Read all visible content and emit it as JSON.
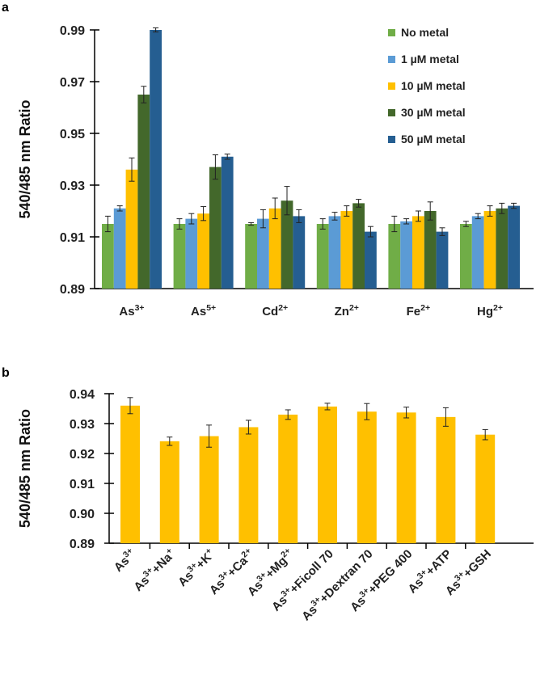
{
  "chart_data": [
    {
      "panel": "a",
      "type": "bar",
      "ylabel": "540/485 nm Ratio",
      "ylim": [
        0.89,
        0.99
      ],
      "yticks": [
        "0.89",
        "0.91",
        "0.93",
        "0.95",
        "0.97",
        "0.99"
      ],
      "grid": false,
      "legend_position": "top-right",
      "categories": [
        [
          {
            "t": "As"
          },
          {
            "sup": "3+"
          }
        ],
        [
          {
            "t": "As"
          },
          {
            "sup": "5+"
          }
        ],
        [
          {
            "t": "Cd"
          },
          {
            "sup": "2+"
          }
        ],
        [
          {
            "t": "Zn"
          },
          {
            "sup": "2+"
          }
        ],
        [
          {
            "t": "Fe"
          },
          {
            "sup": "2+"
          }
        ],
        [
          {
            "t": "Hg"
          },
          {
            "sup": "2+"
          }
        ]
      ],
      "series": [
        {
          "name": "No metal",
          "color": "#70ad47",
          "values": [
            0.915,
            0.915,
            0.915,
            0.915,
            0.915,
            0.915
          ],
          "errors": [
            0.003,
            0.002,
            0.0005,
            0.002,
            0.003,
            0.001
          ]
        },
        {
          "name": "1 µM metal",
          "color": "#5b9bd5",
          "values": [
            0.921,
            0.917,
            0.917,
            0.918,
            0.916,
            0.918
          ],
          "errors": [
            0.001,
            0.002,
            0.0035,
            0.0015,
            0.001,
            0.001
          ]
        },
        {
          "name": "10 µM metal",
          "color": "#ffc000",
          "values": [
            0.936,
            0.919,
            0.921,
            0.92,
            0.918,
            0.92
          ],
          "errors": [
            0.0045,
            0.0027,
            0.004,
            0.002,
            0.002,
            0.002
          ]
        },
        {
          "name": "30 µM metal",
          "color": "#43682b",
          "values": [
            0.965,
            0.937,
            0.924,
            0.923,
            0.92,
            0.921
          ],
          "errors": [
            0.0032,
            0.0047,
            0.0055,
            0.0015,
            0.0035,
            0.002
          ]
        },
        {
          "name": "50 µM metal",
          "color": "#255e91",
          "values": [
            0.99,
            0.941,
            0.918,
            0.912,
            0.912,
            0.922
          ],
          "errors": [
            0.0008,
            0.001,
            0.0025,
            0.002,
            0.0015,
            0.001
          ]
        }
      ]
    },
    {
      "panel": "b",
      "type": "bar",
      "ylabel": "540/485 nm Ratio",
      "ylim": [
        0.89,
        0.94
      ],
      "yticks": [
        "0.89",
        "0.90",
        "0.91",
        "0.92",
        "0.93",
        "0.94"
      ],
      "grid": false,
      "color": "#ffc000",
      "categories": [
        [
          {
            "t": "As"
          },
          {
            "sup": "3+"
          }
        ],
        [
          {
            "t": "As"
          },
          {
            "sup": "3+"
          },
          {
            "t": "+Na"
          },
          {
            "sup": "+"
          }
        ],
        [
          {
            "t": "As"
          },
          {
            "sup": "3+"
          },
          {
            "t": "+K"
          },
          {
            "sup": "+"
          }
        ],
        [
          {
            "t": "As"
          },
          {
            "sup": "3+"
          },
          {
            "t": "+Ca"
          },
          {
            "sup": "2+"
          }
        ],
        [
          {
            "t": "As"
          },
          {
            "sup": "3+"
          },
          {
            "t": "+Mg"
          },
          {
            "sup": "2+"
          }
        ],
        [
          {
            "t": "As"
          },
          {
            "sup": "3+"
          },
          {
            "t": "+Ficoll 70"
          }
        ],
        [
          {
            "t": "As"
          },
          {
            "sup": "3+"
          },
          {
            "t": "+Dextran 70"
          }
        ],
        [
          {
            "t": "As"
          },
          {
            "sup": "3+"
          },
          {
            "t": "+PEG 400"
          }
        ],
        [
          {
            "t": "As"
          },
          {
            "sup": "3+"
          },
          {
            "t": "+ATP"
          }
        ],
        [
          {
            "t": "As"
          },
          {
            "sup": "3+"
          },
          {
            "t": "+GSH"
          }
        ]
      ],
      "values": [
        0.936,
        0.9241,
        0.9258,
        0.9288,
        0.933,
        0.9357,
        0.934,
        0.9337,
        0.9322,
        0.9263
      ],
      "errors": [
        0.0027,
        0.0014,
        0.0037,
        0.0023,
        0.0016,
        0.0011,
        0.0027,
        0.0018,
        0.0031,
        0.0017
      ]
    }
  ],
  "panel_labels": [
    "a",
    "b"
  ]
}
